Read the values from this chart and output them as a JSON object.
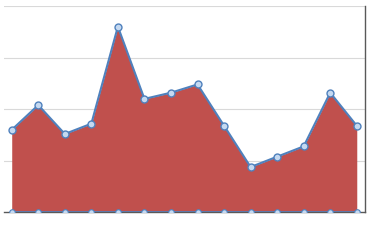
{
  "x": [
    0,
    1,
    2,
    3,
    4,
    5,
    6,
    7,
    8,
    9,
    10,
    11,
    12,
    13
  ],
  "upper": [
    40,
    52,
    38,
    43,
    90,
    55,
    58,
    62,
    42,
    22,
    27,
    32,
    58,
    42
  ],
  "lower": [
    0,
    0,
    0,
    0,
    0,
    0,
    0,
    0,
    0,
    0,
    0,
    0,
    0,
    0
  ],
  "fill_color": "#c0504d",
  "line_color": "#4f81bd",
  "marker_facecolor": "#c5d9f1",
  "marker_edgecolor": "#4f81bd",
  "bg_color": "#ffffff",
  "grid_color": "#d9d9d9",
  "axis_color": "#595959",
  "ylim": [
    0,
    100
  ],
  "xlim": [
    -0.3,
    13.3
  ],
  "n_gridlines": 4
}
